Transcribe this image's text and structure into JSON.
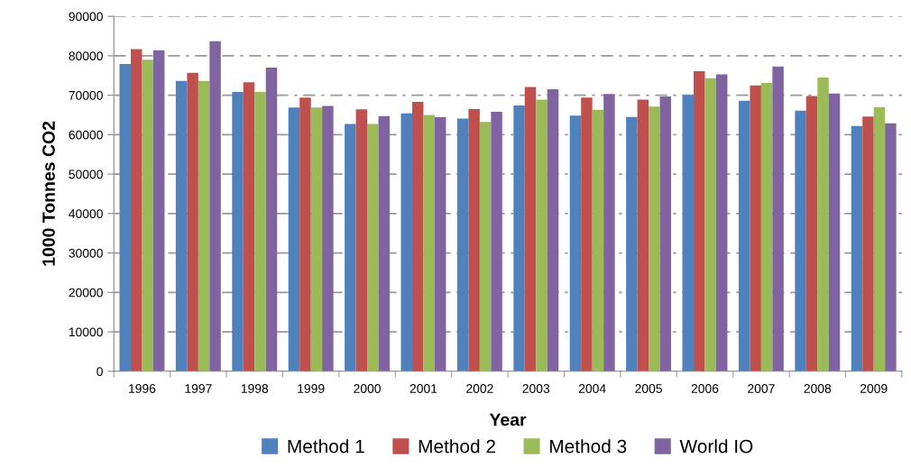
{
  "chart_data": {
    "type": "bar",
    "xlabel": "Year",
    "ylabel": "1000 Tonnes CO2",
    "categories": [
      "1996",
      "1997",
      "1998",
      "1999",
      "2000",
      "2001",
      "2002",
      "2003",
      "2004",
      "2005",
      "2006",
      "2007",
      "2008",
      "2009"
    ],
    "series": [
      {
        "name": "Method 1",
        "color": "#4f81bd",
        "values": [
          77900,
          73600,
          70800,
          66900,
          62700,
          65400,
          64100,
          67400,
          64800,
          64500,
          70000,
          68600,
          66100,
          62200
        ]
      },
      {
        "name": "Method 2",
        "color": "#c0504d",
        "values": [
          81700,
          75700,
          73300,
          69400,
          66400,
          68300,
          66500,
          72100,
          69400,
          68900,
          76100,
          72500,
          69800,
          64600
        ]
      },
      {
        "name": "Method 3",
        "color": "#9bbb59",
        "values": [
          79000,
          73600,
          70800,
          66900,
          62700,
          65000,
          63200,
          68900,
          66300,
          67100,
          74300,
          73100,
          74500,
          67000
        ]
      },
      {
        "name": "World IO",
        "color": "#8064a2",
        "values": [
          81400,
          83700,
          77000,
          67300,
          64700,
          64400,
          65800,
          71500,
          70300,
          69700,
          75300,
          77300,
          70400,
          62900
        ]
      }
    ],
    "ylim": [
      0,
      90000
    ],
    "yticks": [
      0,
      10000,
      20000,
      30000,
      40000,
      50000,
      60000,
      70000,
      80000,
      90000
    ],
    "grid": "y",
    "legend": "bottom"
  }
}
